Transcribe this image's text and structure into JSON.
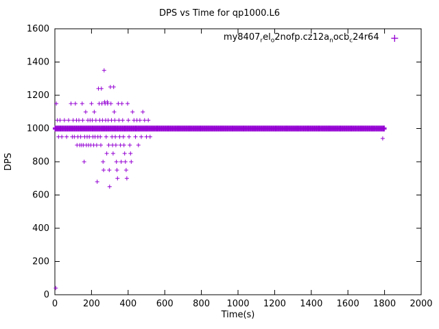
{
  "window": {
    "bg": "#ffffff"
  },
  "chart": {
    "title": "DPS vs Time for qp1000.L6",
    "accent_color": "#9400d3",
    "axis_color": "#000000",
    "legend": {
      "marker": "+",
      "segments": [
        {
          "t": "my8407"
        },
        {
          "t": "r",
          "sub": true
        },
        {
          "t": "el"
        },
        {
          "t": "o",
          "sub": true
        },
        {
          "t": "2nofp.cz12a"
        },
        {
          "t": "n",
          "sub": true
        },
        {
          "t": "ocb"
        },
        {
          "t": "c",
          "sub": true
        },
        {
          "t": "24r64"
        }
      ]
    }
  },
  "chart_data": {
    "type": "scatter",
    "title": "DPS vs Time for qp1000.L6",
    "xlabel": "Time(s)",
    "ylabel": "DPS",
    "xlim": [
      0,
      2000
    ],
    "ylim": [
      0,
      1600
    ],
    "xticks": [
      0,
      200,
      400,
      600,
      800,
      1000,
      1200,
      1400,
      1600,
      1800,
      2000
    ],
    "yticks": [
      0,
      200,
      400,
      600,
      800,
      1000,
      1200,
      1400,
      1600
    ],
    "grid": false,
    "legend_position": "top-right-inside",
    "series": [
      {
        "name": "my8407_rel_o2nofp.cz12a_nocb_c24r64",
        "marker": "+",
        "color": "#9400d3",
        "band": {
          "x_start": 0,
          "x_end": 1800,
          "x_step": 4,
          "y_levels": [
            995,
            1000,
            1005
          ]
        },
        "points": [
          [
            5,
            40
          ],
          [
            8,
            1150
          ],
          [
            14,
            1050
          ],
          [
            20,
            950
          ],
          [
            28,
            1050
          ],
          [
            38,
            950
          ],
          [
            52,
            1050
          ],
          [
            64,
            950
          ],
          [
            75,
            1050
          ],
          [
            88,
            1150
          ],
          [
            95,
            950
          ],
          [
            100,
            1050
          ],
          [
            106,
            950
          ],
          [
            112,
            1150
          ],
          [
            118,
            1050
          ],
          [
            121,
            900
          ],
          [
            126,
            950
          ],
          [
            131,
            1050
          ],
          [
            136,
            900
          ],
          [
            141,
            950
          ],
          [
            146,
            900
          ],
          [
            149,
            1150
          ],
          [
            152,
            1050
          ],
          [
            156,
            900
          ],
          [
            160,
            800
          ],
          [
            163,
            950
          ],
          [
            168,
            1100
          ],
          [
            172,
            900
          ],
          [
            176,
            950
          ],
          [
            180,
            1050
          ],
          [
            184,
            900
          ],
          [
            188,
            950
          ],
          [
            192,
            1050
          ],
          [
            196,
            900
          ],
          [
            200,
            1150
          ],
          [
            204,
            1050
          ],
          [
            208,
            950
          ],
          [
            212,
            900
          ],
          [
            215,
            1100
          ],
          [
            219,
            950
          ],
          [
            224,
            1050
          ],
          [
            228,
            900
          ],
          [
            231,
            680
          ],
          [
            235,
            950
          ],
          [
            238,
            1240
          ],
          [
            242,
            1150
          ],
          [
            245,
            1050
          ],
          [
            248,
            950
          ],
          [
            251,
            900
          ],
          [
            254,
            1240
          ],
          [
            257,
            1150
          ],
          [
            260,
            1050
          ],
          [
            263,
            800
          ],
          [
            266,
            750
          ],
          [
            269,
            1350
          ],
          [
            272,
            1160
          ],
          [
            274,
            1150
          ],
          [
            277,
            1050
          ],
          [
            280,
            950
          ],
          [
            283,
            850
          ],
          [
            286,
            1160
          ],
          [
            288,
            1150
          ],
          [
            291,
            1050
          ],
          [
            294,
            900
          ],
          [
            297,
            750
          ],
          [
            299,
            650
          ],
          [
            303,
            1250
          ],
          [
            306,
            1150
          ],
          [
            309,
            1050
          ],
          [
            312,
            950
          ],
          [
            315,
            900
          ],
          [
            318,
            850
          ],
          [
            321,
            1250
          ],
          [
            324,
            1100
          ],
          [
            327,
            1050
          ],
          [
            330,
            950
          ],
          [
            333,
            900
          ],
          [
            336,
            800
          ],
          [
            339,
            750
          ],
          [
            342,
            700
          ],
          [
            346,
            1150
          ],
          [
            350,
            1050
          ],
          [
            354,
            950
          ],
          [
            358,
            900
          ],
          [
            362,
            800
          ],
          [
            366,
            1150
          ],
          [
            370,
            1050
          ],
          [
            374,
            950
          ],
          [
            377,
            900
          ],
          [
            381,
            850
          ],
          [
            385,
            800
          ],
          [
            389,
            750
          ],
          [
            393,
            700
          ],
          [
            397,
            1150
          ],
          [
            401,
            1050
          ],
          [
            405,
            950
          ],
          [
            409,
            900
          ],
          [
            413,
            850
          ],
          [
            417,
            800
          ],
          [
            424,
            1100
          ],
          [
            432,
            1050
          ],
          [
            440,
            950
          ],
          [
            448,
            1050
          ],
          [
            456,
            900
          ],
          [
            464,
            1050
          ],
          [
            472,
            950
          ],
          [
            480,
            1100
          ],
          [
            490,
            1050
          ],
          [
            500,
            950
          ],
          [
            510,
            1050
          ],
          [
            520,
            950
          ],
          [
            1790,
            940
          ]
        ]
      }
    ]
  }
}
